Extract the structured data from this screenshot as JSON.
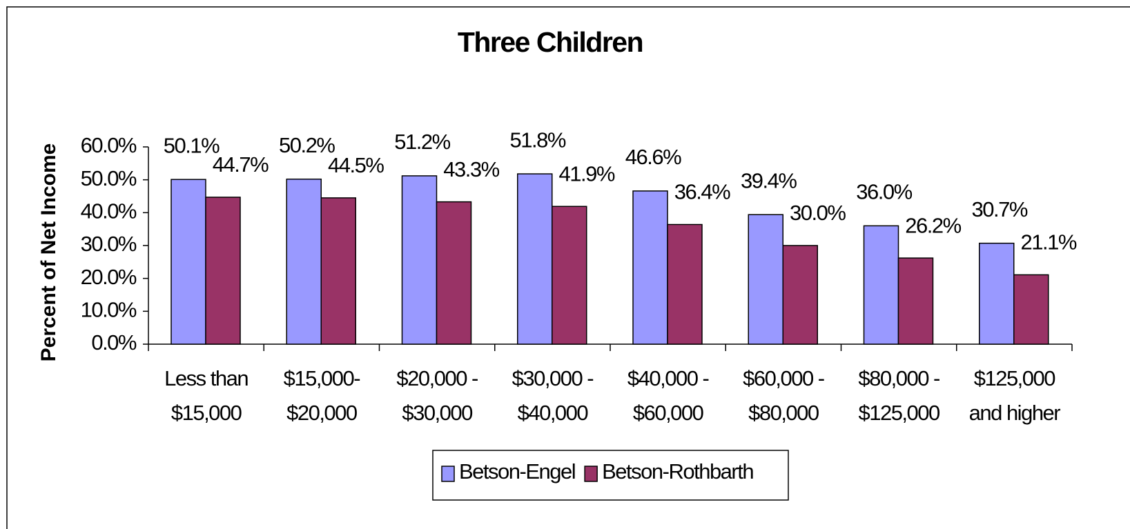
{
  "chart_data": {
    "type": "bar",
    "title": "Three Children",
    "y_axis_label": "Percent of Net Income",
    "categories": [
      [
        "Less than",
        "$15,000"
      ],
      [
        "$15,000-",
        "$20,000"
      ],
      [
        "$20,000 -",
        "$30,000"
      ],
      [
        "$30,000 -",
        "$40,000"
      ],
      [
        "$40,000 -",
        "$60,000"
      ],
      [
        "$60,000 -",
        "$80,000"
      ],
      [
        "$80,000 -",
        "$125,000"
      ],
      [
        "$125,000",
        "and higher"
      ]
    ],
    "series": [
      {
        "name": "Betson-Engel",
        "color": "#9999ff",
        "values": [
          50.1,
          50.2,
          51.2,
          51.8,
          46.6,
          39.4,
          36.0,
          30.7
        ],
        "value_labels": [
          "50.1%",
          "50.2%",
          "51.2%",
          "51.8%",
          "46.6%",
          "39.4%",
          "36.0%",
          "30.7%"
        ]
      },
      {
        "name": "Betson-Rothbarth",
        "color": "#993366",
        "values": [
          44.7,
          44.5,
          43.3,
          41.9,
          36.4,
          30.0,
          26.2,
          21.1
        ],
        "value_labels": [
          "44.7%",
          "44.5%",
          "43.3%",
          "41.9%",
          "36.4%",
          "30.0%",
          "26.2%",
          "21.1%"
        ]
      }
    ],
    "ylim": [
      0,
      60
    ],
    "yticks": [
      {
        "value": 0,
        "label": "0.0%"
      },
      {
        "value": 10,
        "label": "10.0%"
      },
      {
        "value": 20,
        "label": "20.0%"
      },
      {
        "value": 30,
        "label": "30.0%"
      },
      {
        "value": 40,
        "label": "40.0%"
      },
      {
        "value": 50,
        "label": "50.0%"
      },
      {
        "value": 60,
        "label": "60.0%"
      }
    ],
    "legend": "bottom"
  }
}
